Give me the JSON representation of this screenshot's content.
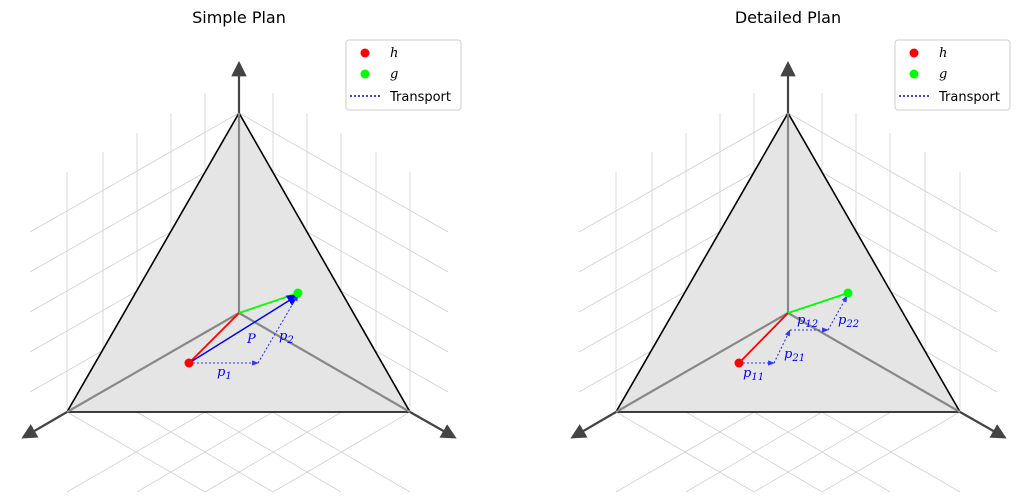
{
  "colors": {
    "h": "#ff0000",
    "g": "#00ff00",
    "transport": "#0000ff",
    "simplex_fill": "#e5e5e5"
  },
  "plots": [
    {
      "title": "Simple Plan",
      "legend": {
        "h": "h",
        "g": "g",
        "transport": "Transport"
      },
      "arrow_label": "P",
      "labels": [
        "p",
        "p"
      ],
      "label_subs": [
        "1",
        "2"
      ]
    },
    {
      "title": "Detailed Plan",
      "legend": {
        "h": "h",
        "g": "g",
        "transport": "Transport"
      },
      "labels": [
        "p",
        "p",
        "p",
        "p"
      ],
      "label_subs": [
        "11",
        "12",
        "21",
        "22"
      ]
    }
  ]
}
